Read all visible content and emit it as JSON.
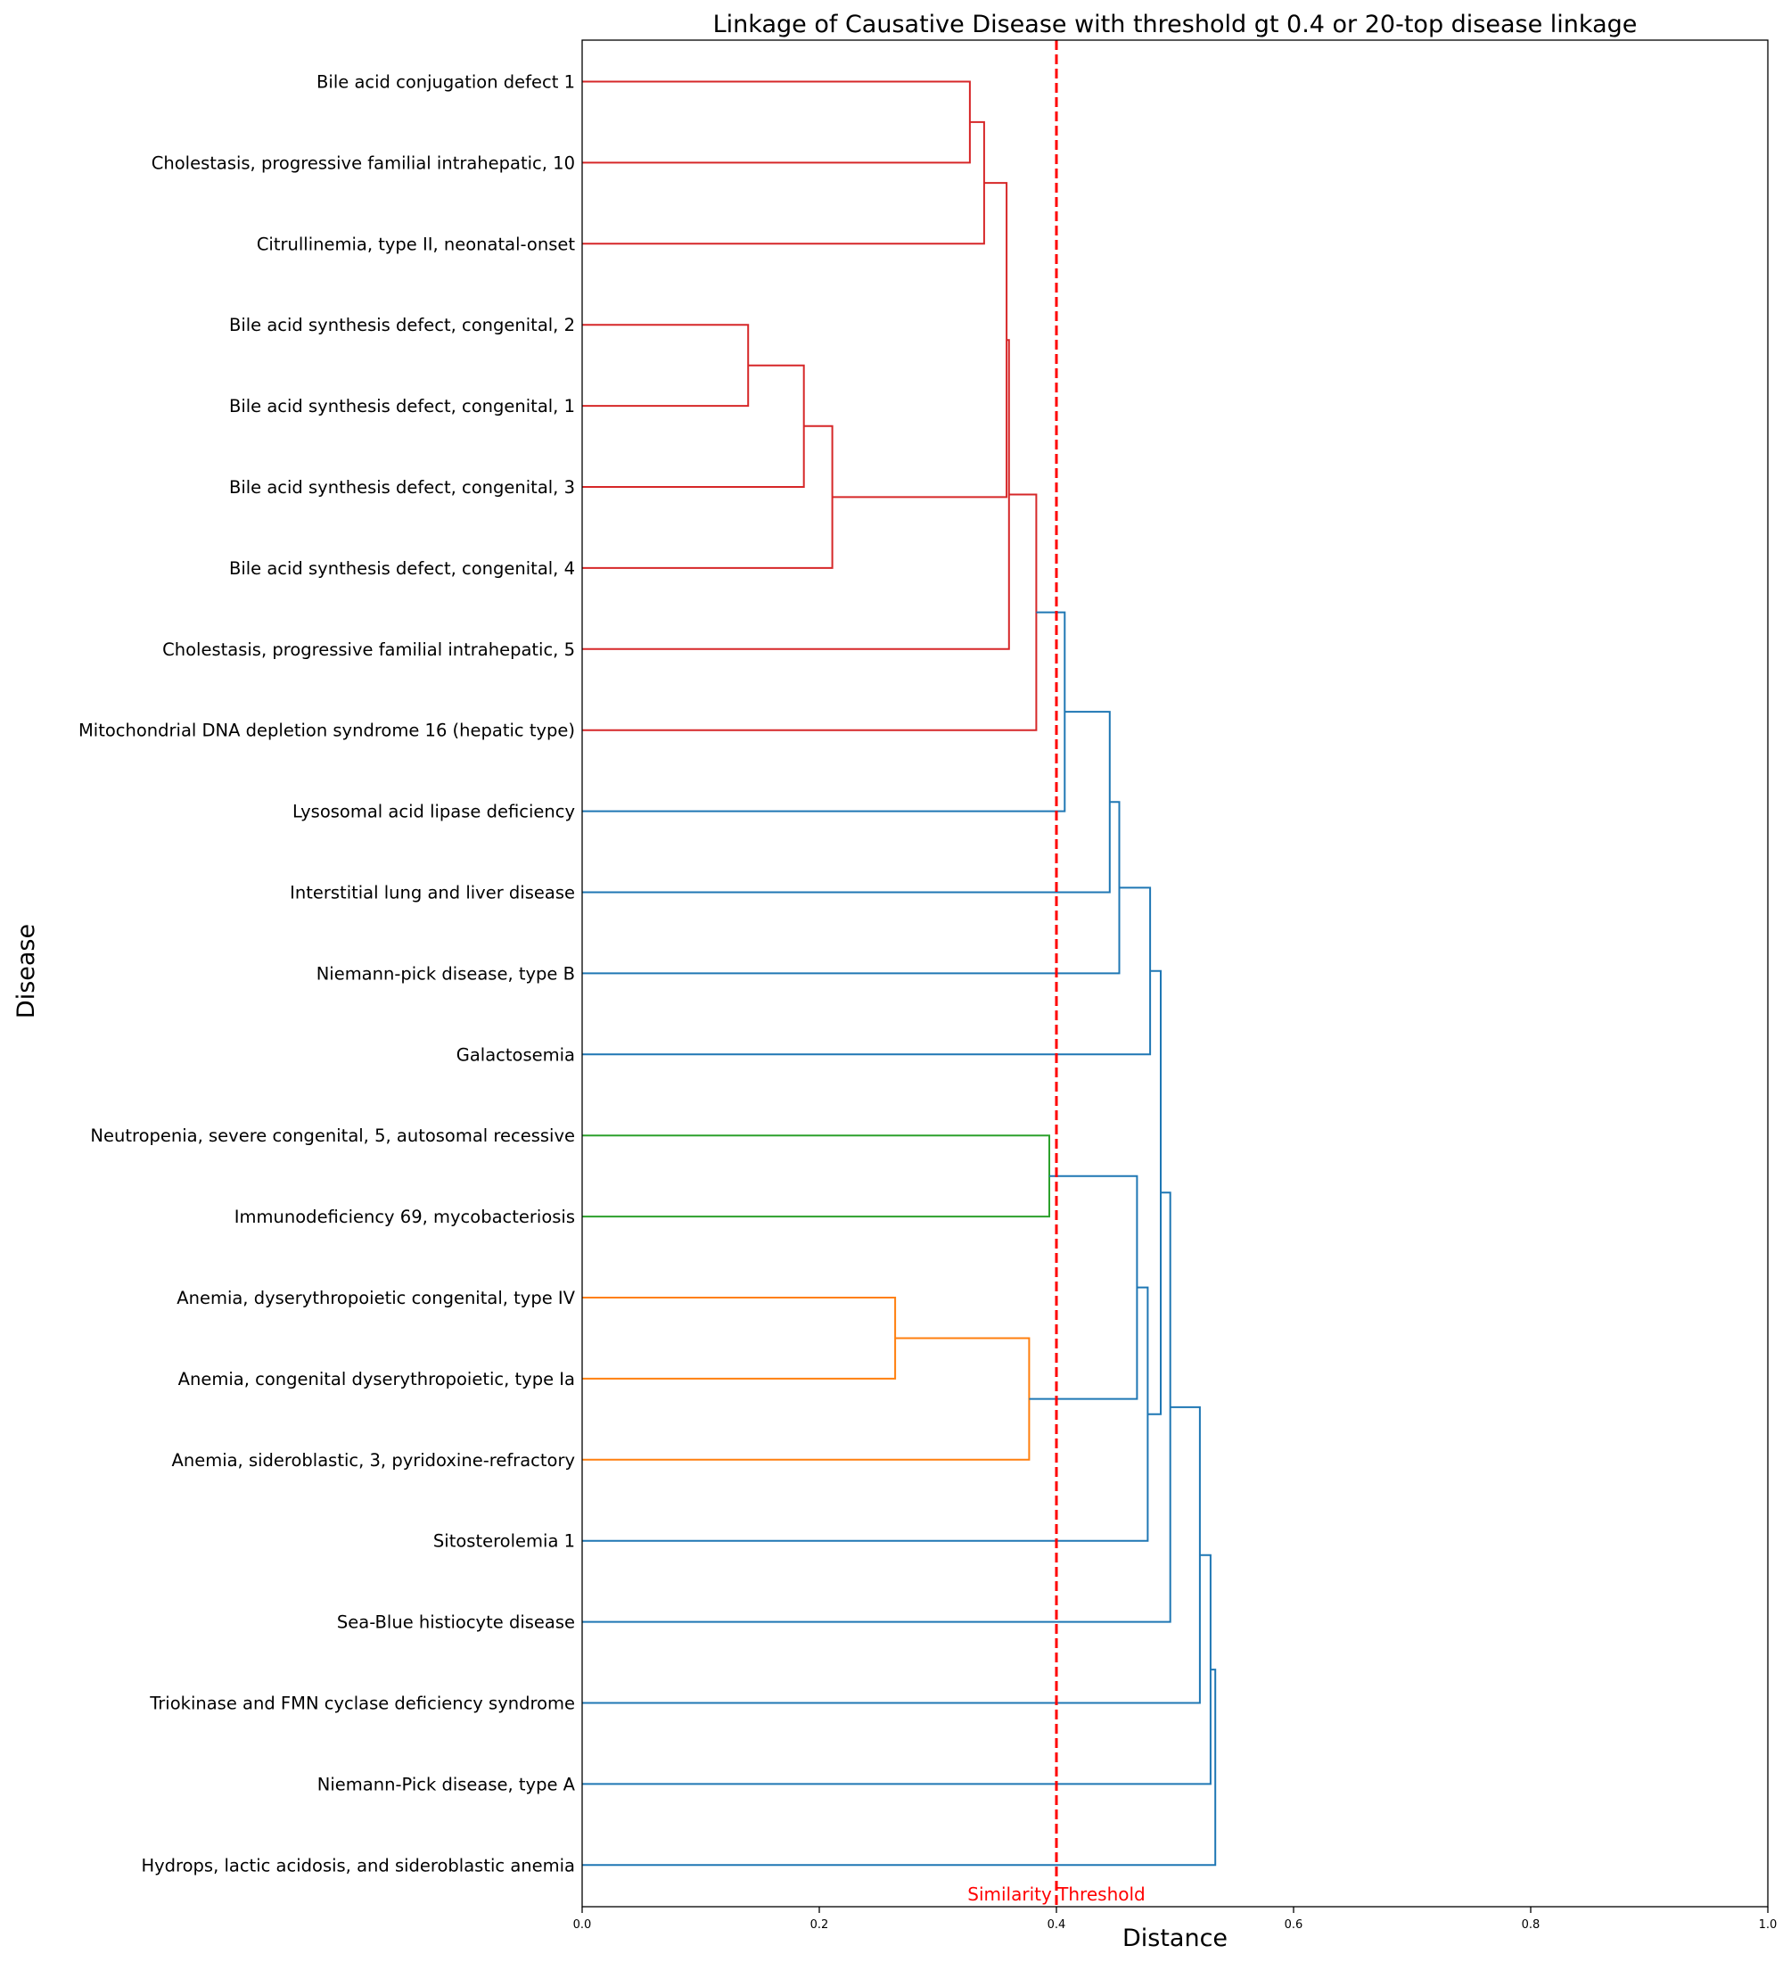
{
  "chart_data": {
    "type": "dendrogram",
    "orientation": "horizontal",
    "title": "Linkage of Causative Disease with threshold gt 0.4 or 20-top disease linkage",
    "xlabel": "Distance",
    "ylabel": "Disease",
    "xlim": [
      0,
      1
    ],
    "x_ticks": [
      "0.0",
      "0.2",
      "0.4",
      "0.6",
      "0.8",
      "1.0"
    ],
    "grid": false,
    "threshold": {
      "value": 0.4,
      "label": "Similarity Threshold",
      "color": "#ff0000"
    },
    "leaves": [
      "Bile acid conjugation defect 1",
      "Cholestasis, progressive familial intrahepatic, 10",
      "Citrullinemia, type II, neonatal-onset",
      "Bile acid synthesis defect, congenital, 2",
      "Bile acid synthesis defect, congenital, 1",
      "Bile acid synthesis defect, congenital, 3",
      "Bile acid synthesis defect, congenital, 4",
      "Cholestasis, progressive familial intrahepatic, 5",
      "Mitochondrial DNA depletion syndrome 16 (hepatic type)",
      "Lysosomal acid lipase deficiency",
      "Interstitial lung and liver disease",
      "Niemann-pick disease, type B",
      "Galactosemia",
      "Neutropenia, severe congenital, 5, autosomal recessive",
      "Immunodeficiency 69, mycobacteriosis",
      "Anemia, dyserythropoietic congenital, type IV",
      "Anemia, congenital dyserythropoietic, type Ia",
      "Anemia, sideroblastic, 3, pyridoxine-refractory",
      "Sitosterolemia 1",
      "Sea-Blue histiocyte disease",
      "Triokinase and FMN cyclase deficiency syndrome",
      "Niemann-Pick disease, type A",
      "Hydrops, lactic acidosis, and sideroblastic anemia"
    ],
    "colors": {
      "red": "#d62728",
      "green": "#2ca02c",
      "orange": "#ff7f0e",
      "blue": "#1f77b4"
    },
    "merges": [
      {
        "id": "n1",
        "a": 0,
        "b": 1,
        "distance": 0.327,
        "color": "red"
      },
      {
        "id": "n2",
        "a": "n1",
        "b": 2,
        "distance": 0.339,
        "color": "red"
      },
      {
        "id": "n3",
        "a": 3,
        "b": 4,
        "distance": 0.14,
        "color": "red"
      },
      {
        "id": "n4",
        "a": "n3",
        "b": 5,
        "distance": 0.187,
        "color": "red"
      },
      {
        "id": "n5",
        "a": "n4",
        "b": 6,
        "distance": 0.211,
        "color": "red"
      },
      {
        "id": "n6",
        "a": "n2",
        "b": "n5",
        "distance": 0.358,
        "color": "red"
      },
      {
        "id": "n7",
        "a": "n6",
        "b": 7,
        "distance": 0.36,
        "color": "red"
      },
      {
        "id": "n8",
        "a": "n7",
        "b": 8,
        "distance": 0.383,
        "color": "red"
      },
      {
        "id": "n9",
        "a": "n8",
        "b": 9,
        "distance": 0.407,
        "color": "blue"
      },
      {
        "id": "n10",
        "a": "n9",
        "b": 10,
        "distance": 0.445,
        "color": "blue"
      },
      {
        "id": "n11",
        "a": "n10",
        "b": 11,
        "distance": 0.453,
        "color": "blue"
      },
      {
        "id": "n12",
        "a": "n11",
        "b": 12,
        "distance": 0.479,
        "color": "blue"
      },
      {
        "id": "n13",
        "a": 13,
        "b": 14,
        "distance": 0.394,
        "color": "green"
      },
      {
        "id": "n14",
        "a": 15,
        "b": 16,
        "distance": 0.264,
        "color": "orange"
      },
      {
        "id": "n15",
        "a": "n14",
        "b": 17,
        "distance": 0.377,
        "color": "orange"
      },
      {
        "id": "n16",
        "a": "n13",
        "b": "n15",
        "distance": 0.468,
        "color": "blue"
      },
      {
        "id": "n17",
        "a": "n16",
        "b": 18,
        "distance": 0.477,
        "color": "blue"
      },
      {
        "id": "n18",
        "a": "n12",
        "b": "n17",
        "distance": 0.488,
        "color": "blue"
      },
      {
        "id": "n19",
        "a": "n18",
        "b": 19,
        "distance": 0.496,
        "color": "blue"
      },
      {
        "id": "n20",
        "a": "n19",
        "b": 20,
        "distance": 0.521,
        "color": "blue"
      },
      {
        "id": "n21",
        "a": "n20",
        "b": 21,
        "distance": 0.53,
        "color": "blue"
      },
      {
        "id": "n22",
        "a": "n21",
        "b": 22,
        "distance": 0.534,
        "color": "blue"
      }
    ]
  }
}
